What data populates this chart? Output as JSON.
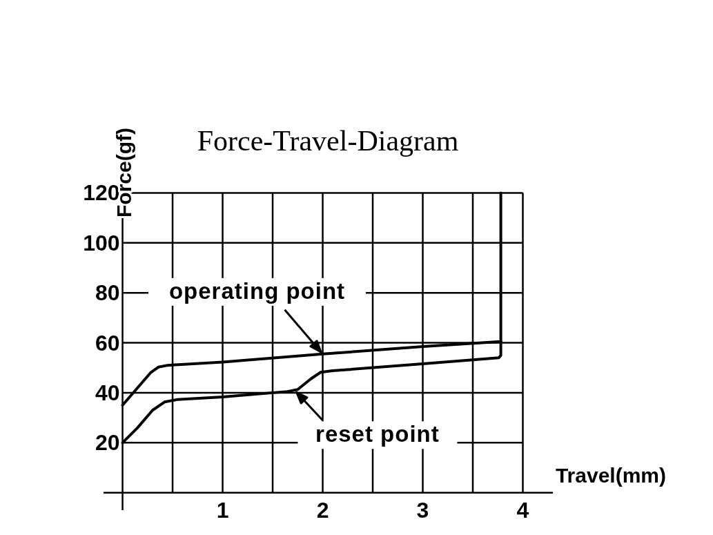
{
  "chart_data": {
    "type": "line",
    "title": "Force-Travel-Diagram",
    "xlabel": "Travel(mm)",
    "ylabel": "Force(gf)",
    "xlim": [
      -0.19,
      4.3
    ],
    "ylim": [
      -7,
      145
    ],
    "xticks": [
      {
        "value": 0.5,
        "label": null
      },
      1,
      {
        "value": 1.5,
        "label": null
      },
      2,
      {
        "value": 2.5,
        "label": null
      },
      3,
      {
        "value": 3.5,
        "label": null
      },
      4
    ],
    "yticks": [
      20,
      40,
      60,
      80,
      100,
      120
    ],
    "grid": true,
    "marker": "none",
    "line_style": "solid",
    "series": [
      {
        "color": "#000000",
        "x": [
          0,
          0.15,
          0.28,
          0.36,
          0.45,
          1,
          2,
          3,
          3.78,
          3.78
        ],
        "values": [
          35,
          42,
          48,
          50.3,
          51,
          52.3,
          55.5,
          58.5,
          60.5,
          120
        ]
      },
      {
        "color": "#000000",
        "x": [
          0,
          0.15,
          0.3,
          0.42,
          0.55,
          1,
          1.65,
          1.75,
          1.88,
          1.98,
          2.1,
          3,
          3.76,
          3.78,
          3.78
        ],
        "values": [
          20,
          26,
          33,
          36.3,
          37.3,
          38.3,
          40.5,
          41.3,
          45.5,
          48.2,
          48.8,
          51.6,
          54,
          55,
          60.5
        ]
      }
    ],
    "annotations": [
      {
        "text": "operating point",
        "x": 2,
        "y": 55.5
      },
      {
        "text": "reset point",
        "x": 1.72,
        "y": 41
      }
    ]
  }
}
